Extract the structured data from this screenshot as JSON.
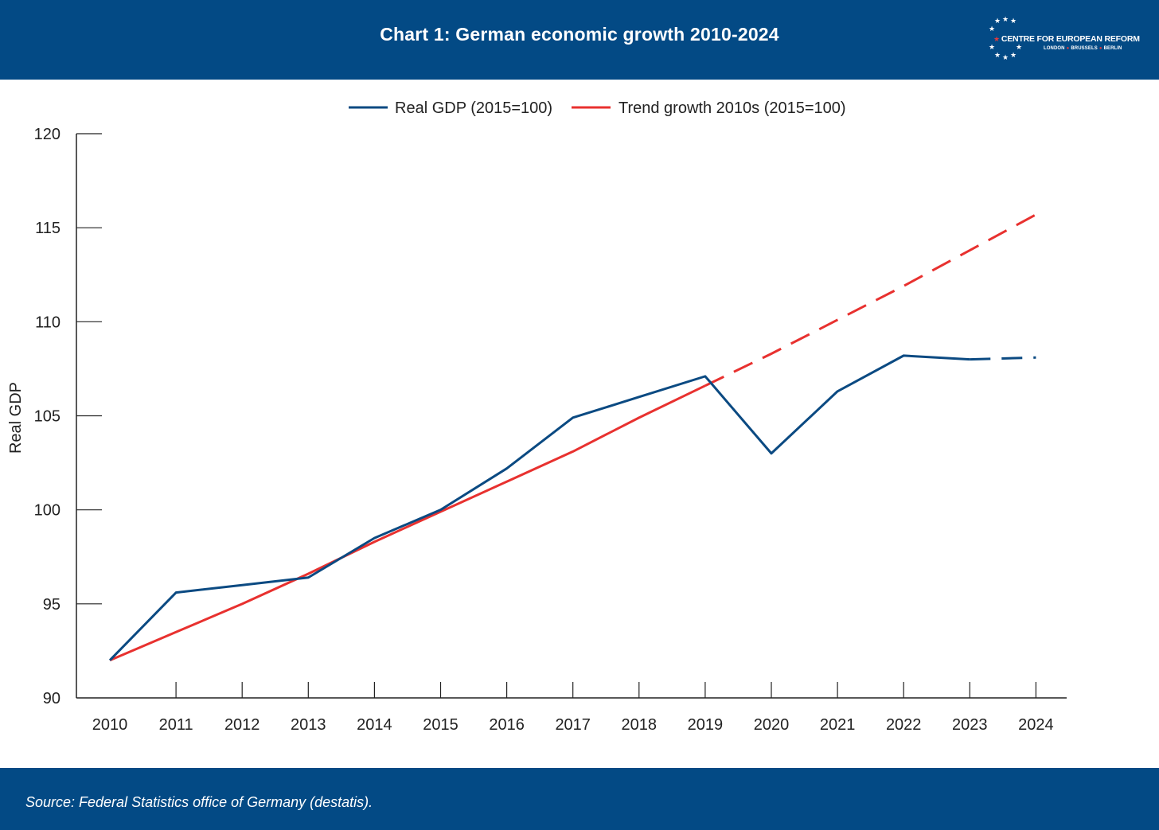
{
  "header": {
    "title": "Chart 1: German economic growth 2010-2024",
    "logo_name": "CENTRE FOR EUROPEAN REFORM",
    "logo_cities": [
      "LONDON",
      "BRUSSELS",
      "BERLIN"
    ]
  },
  "footer": {
    "source": "Source: Federal Statistics office of Germany (destatis)."
  },
  "colors": {
    "brand_blue": "#034a85",
    "gdp_line": "#0b4a82",
    "trend_line": "#e8312f",
    "logo_accent": "#e03a3e"
  },
  "chart_data": {
    "type": "line",
    "title": "Chart 1: German economic growth 2010-2024",
    "xlabel": "",
    "ylabel": "Real GDP",
    "ylim": [
      90,
      120
    ],
    "yticks": [
      "90",
      "95",
      "100",
      "105",
      "110",
      "115",
      "120"
    ],
    "categories": [
      "2010",
      "2011",
      "2012",
      "2013",
      "2014",
      "2015",
      "2016",
      "2017",
      "2018",
      "2019",
      "2020",
      "2021",
      "2022",
      "2023",
      "2024"
    ],
    "legend_position": "top-center",
    "series": [
      {
        "name": "Real GDP (2015=100)",
        "color": "#0b4a82",
        "values": [
          92.0,
          95.6,
          96.0,
          96.4,
          98.5,
          100.0,
          102.2,
          104.9,
          106.0,
          107.1,
          103.0,
          106.3,
          108.2,
          108.0,
          108.1
        ],
        "dashed_from": "2023"
      },
      {
        "name": "Trend growth 2010s (2015=100)",
        "color": "#e8312f",
        "values": [
          92.0,
          93.5,
          95.0,
          96.6,
          98.3,
          99.9,
          101.5,
          103.1,
          104.9,
          106.6,
          108.3,
          110.1,
          111.9,
          113.8,
          115.7
        ],
        "dashed_from": "2019"
      }
    ]
  }
}
